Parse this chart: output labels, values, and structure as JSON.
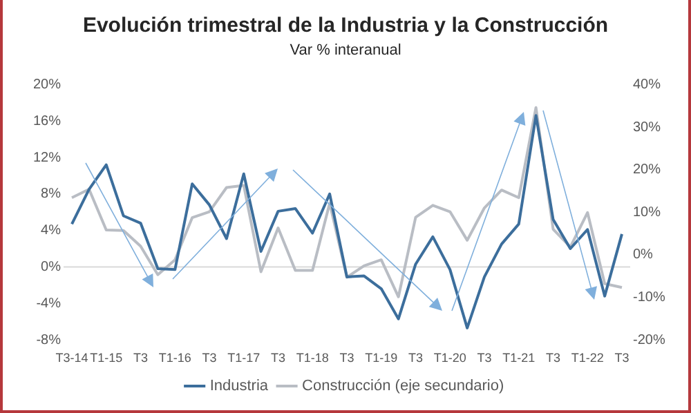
{
  "chart_data": {
    "type": "line",
    "title": "Evolución trimestral de la Industria y la Construcción",
    "subtitle": "Var % interanual",
    "categories": [
      "T3-14",
      null,
      "T1-15",
      null,
      "T3",
      null,
      "T1-16",
      null,
      "T3",
      null,
      "T1-17",
      null,
      "T3",
      null,
      "T1-18",
      null,
      "T3",
      null,
      "T1-19",
      null,
      "T3",
      null,
      "T1-20",
      null,
      "T3",
      null,
      "T1-21",
      null,
      "T3",
      null,
      "T1-22",
      null,
      "T3"
    ],
    "series": [
      {
        "name": "Industria",
        "color": "#3c6e9c",
        "values": [
          4.7,
          8.5,
          11.2,
          5.6,
          4.8,
          -0.2,
          -0.3,
          9.1,
          6.8,
          3.1,
          10.2,
          1.7,
          6.1,
          6.4,
          3.7,
          8.0,
          -1.1,
          -1.0,
          -2.4,
          -5.7,
          0.3,
          3.3,
          -0.3,
          -6.7,
          -1.1,
          2.5,
          4.7,
          16.6,
          5.2,
          2.0,
          4.1,
          -3.2,
          3.6
        ]
      },
      {
        "name": "Construcción (eje secundario)",
        "color": "#b9bdc4",
        "axis": "y2",
        "values": [
          13.4,
          15.4,
          5.8,
          5.7,
          2.0,
          -4.7,
          -1.2,
          8.7,
          10.1,
          15.8,
          16.3,
          -4.0,
          6.3,
          -3.7,
          -3.7,
          12.1,
          -5.3,
          -2.6,
          -1.2,
          -9.9,
          8.8,
          11.6,
          10.1,
          3.4,
          11.0,
          15.2,
          13.4,
          34.6,
          6.0,
          1.8,
          9.9,
          -6.8,
          -7.7
        ]
      }
    ],
    "ylim": [
      -8,
      20
    ],
    "yticks": [
      {
        "value": -8,
        "label": "-8%"
      },
      {
        "value": -4,
        "label": "-4%"
      },
      {
        "value": 0,
        "label": "0%"
      },
      {
        "value": 4,
        "label": "4%"
      },
      {
        "value": 8,
        "label": "8%"
      },
      {
        "value": 12,
        "label": "12%"
      },
      {
        "value": 16,
        "label": "16%"
      },
      {
        "value": 20,
        "label": "20%"
      }
    ],
    "y2lim": [
      -20,
      40
    ],
    "y2ticks": [
      {
        "value": -20,
        "label": "-20%"
      },
      {
        "value": -10,
        "label": "-10%"
      },
      {
        "value": 0,
        "label": "0%"
      },
      {
        "value": 10,
        "label": "10%"
      },
      {
        "value": 20,
        "label": "20%"
      },
      {
        "value": 30,
        "label": "30%"
      },
      {
        "value": 40,
        "label": "40%"
      }
    ],
    "ref_lines": [
      {
        "axis": "y",
        "value": 0,
        "color": "#d9d9d9"
      }
    ],
    "grid": false,
    "legend": "bottom",
    "marker": "none",
    "line_style": "solid"
  }
}
